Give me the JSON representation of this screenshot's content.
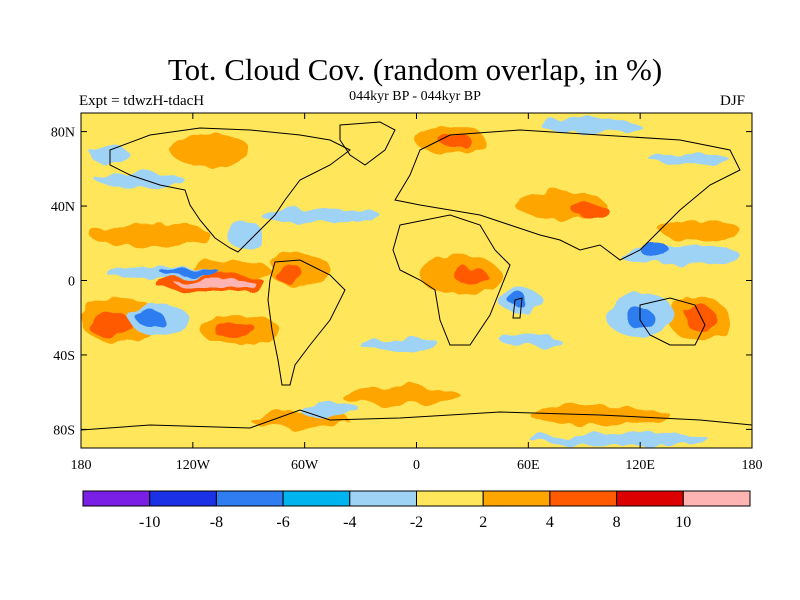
{
  "title": "Tot. Cloud Cov. (random overlap, in %)",
  "subtitle_left": "Expt = tdwzH-tdacH",
  "subtitle_center": "044kyr BP - 044kyr BP",
  "subtitle_right": "DJF",
  "map": {
    "lon_range": [
      -180,
      180
    ],
    "lat_range": [
      -90,
      90
    ],
    "lon_ticks": [
      {
        "value": -180,
        "label": "180"
      },
      {
        "value": -120,
        "label": "120W"
      },
      {
        "value": -60,
        "label": "60W"
      },
      {
        "value": 0,
        "label": "0"
      },
      {
        "value": 60,
        "label": "60E"
      },
      {
        "value": 120,
        "label": "120E"
      },
      {
        "value": 180,
        "label": "180"
      }
    ],
    "lat_ticks": [
      {
        "value": 80,
        "label": "80N"
      },
      {
        "value": 40,
        "label": "40N"
      },
      {
        "value": 0,
        "label": "0"
      },
      {
        "value": -40,
        "label": "40S"
      },
      {
        "value": -80,
        "label": "80S"
      }
    ],
    "background_color": "#ffe65a"
  },
  "colorbar": {
    "colors": [
      "#7a1fe6",
      "#1b31e6",
      "#2f7df0",
      "#00b4f0",
      "#9fd3f5",
      "#ffe65a",
      "#ffa500",
      "#ff5a00",
      "#dc0000",
      "#ffb4b4"
    ],
    "labels": [
      "-10",
      "-8",
      "-6",
      "-4",
      "-2",
      "2",
      "4",
      "8",
      "10"
    ]
  }
}
